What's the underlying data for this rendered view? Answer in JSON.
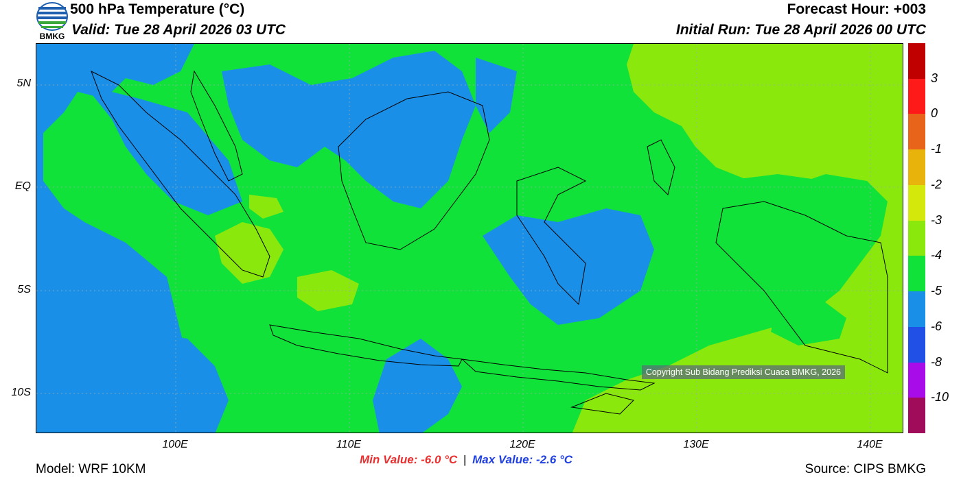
{
  "header": {
    "title": "500 hPa Temperature (°C)",
    "valid": "Valid: Tue 28 April 2026 03 UTC",
    "forecast_hour": "Forecast Hour: +003",
    "initial_run": "Initial Run: Tue 28 April 2026 00 UTC",
    "logo_text": "BMKG"
  },
  "map": {
    "lat_labels": [
      "5N",
      "EQ",
      "5S",
      "10S"
    ],
    "lon_labels": [
      "100E",
      "110E",
      "120E",
      "130E",
      "140E"
    ],
    "copyright": "Copyright Sub Bidang Prediksi Cuaca BMKG, 2026",
    "region": "Indonesia",
    "colors": {
      "c_below_minus5": "#1a8fe8",
      "c_minus5_minus4": "#10e23a",
      "c_minus4_minus3": "#8ae80c"
    }
  },
  "colorbar": {
    "labels": [
      "3",
      "0",
      "-1",
      "-2",
      "-3",
      "-4",
      "-5",
      "-6",
      "-8",
      "-10"
    ],
    "colors": [
      "#c00000",
      "#ff1a1a",
      "#e8641a",
      "#e8b40c",
      "#d4e80c",
      "#8ae80c",
      "#10e23a",
      "#1a8fe8",
      "#2050e6",
      "#a80ce8",
      "#a00c5a"
    ]
  },
  "footer": {
    "min_value": "Min Value: -6.0 °C",
    "separator": "|",
    "max_value": "Max Value: -2.6 °C",
    "model": "Model: WRF 10KM",
    "source": "Source: CIPS BMKG"
  }
}
